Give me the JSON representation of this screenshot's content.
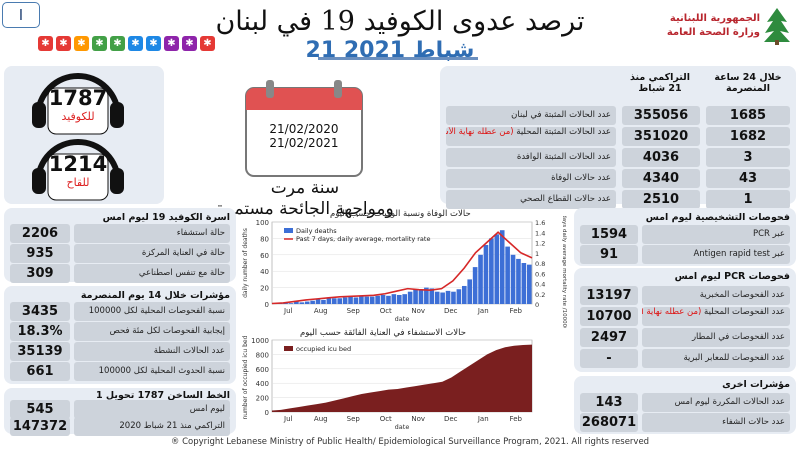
{
  "header": {
    "page_number": "I",
    "title": "ترصد عدوى الكوفيد 19 في لبنان",
    "date": "21 شباط 2021",
    "ministry_line1": "الجمهورية اللبنانية",
    "ministry_line2": "وزارة الصحة العامة",
    "icon_colors": [
      "#e53935",
      "#e53935",
      "#ff9800",
      "#43a047",
      "#43a047",
      "#1e88e5",
      "#1e88e5",
      "#8e24aa",
      "#8e24aa",
      "#e53935"
    ]
  },
  "hotlines": {
    "covid_number": "1787",
    "covid_label": "للكوفيد",
    "vaccine_number": "1214",
    "vaccine_label": "للقاح"
  },
  "calendar": {
    "date1": "21/02/2020",
    "date2": "21/02/2021",
    "line1": "سنة مرت",
    "line2": "ومواجهة الجائحة مستمرة"
  },
  "main_stats": {
    "col_24h": "خلال 24 ساعة المنصرمة",
    "col_cumulative": "التراكمي منذ 21 شباط",
    "rows": [
      {
        "v24": "1685",
        "cum": "355056",
        "label": "عدد الحالات المثبتة في لبنان",
        "note": ""
      },
      {
        "v24": "1682",
        "cum": "351020",
        "label": "عدد الحالات المثبتة المحلية",
        "note": "(من عطله نهاية الأسبوع)"
      },
      {
        "v24": "3",
        "cum": "4036",
        "label": "عدد الحالات المثبتة الوافدة",
        "note": ""
      },
      {
        "v24": "43",
        "cum": "4340",
        "label": "عدد حالات الوفاة",
        "note": ""
      },
      {
        "v24": "1",
        "cum": "2510",
        "label": "عدد حالات القطاع الصحي",
        "note": ""
      }
    ]
  },
  "beds": {
    "title": "اسرة الكوفيد 19 ليوم امس",
    "rows": [
      {
        "value": "2206",
        "label": "حالة استشفاء"
      },
      {
        "value": "935",
        "label": "حالة في العناية المركزة"
      },
      {
        "value": "309",
        "label": "حالة مع تنفس اصطناعي"
      }
    ]
  },
  "indicators14": {
    "title": "مؤشرات خلال 14 يوم المنصرمة",
    "rows": [
      {
        "value": "3435",
        "label": "نسبة الفحوصات المحلية لكل 100000"
      },
      {
        "value": "18.3%",
        "label": "إيجابية الفحوصات لكل مئة فحص"
      },
      {
        "value": "35139",
        "label": "عدد الحالات النشطة"
      },
      {
        "value": "661",
        "label": "نسبة الحدوث المحلية لكل 100000"
      }
    ]
  },
  "hotline_transfers": {
    "title": "الخط الساخن 1787 تحويل 1",
    "rows": [
      {
        "value": "545",
        "label": "ليوم امس"
      },
      {
        "value": "147372",
        "label": "التراكمي منذ 21 شباط 2020"
      }
    ]
  },
  "diagnostic_tests": {
    "title": "فحوصات التشخيصية ليوم امس",
    "rows": [
      {
        "value": "1594",
        "label": "عبر PCR"
      },
      {
        "value": "91",
        "label": "عبر Antigen rapid test"
      }
    ]
  },
  "pcr_tests": {
    "title": "فحوصات PCR ليوم امس",
    "rows": [
      {
        "value": "13197",
        "label": "عدد الفحوصات المخبرية",
        "note": ""
      },
      {
        "value": "10700",
        "label": "عدد الفحوصات المحلية",
        "note": "(من عطله نهاية الأسبوع)"
      },
      {
        "value": "2497",
        "label": "عدد الفحوصات في المطار",
        "note": ""
      },
      {
        "value": "-",
        "label": "عدد الفحوصات للمعابر البرية",
        "note": ""
      }
    ]
  },
  "other_indicators": {
    "title": "مؤشرات اخرى",
    "rows": [
      {
        "value": "143",
        "label": "عدد الحالات المكررة ليوم امس"
      },
      {
        "value": "268071",
        "label": "عدد حالات الشفاء"
      }
    ]
  },
  "chart_data": [
    {
      "type": "bar",
      "title": "حالات الوفاة ونسبة الوفيات حسب اليوم",
      "ylabel": "daily number of deaths",
      "y2label": "past 7 days daily average mortality rate /100000",
      "xlabel": "date",
      "legend": [
        "Daily deaths",
        "Past 7 days, daily average, mortality rate"
      ],
      "x_ticks": [
        "Jul",
        "Aug",
        "Sep",
        "Oct",
        "Nov",
        "Dec",
        "Jan",
        "Feb"
      ],
      "y_ticks": [
        0,
        20,
        40,
        60,
        80,
        100
      ],
      "y2_ticks": [
        0,
        0.2,
        0.4,
        0.6,
        0.8,
        1.0,
        1.2,
        1.4,
        1.6
      ],
      "ylim": [
        0,
        100
      ],
      "y2lim": [
        0,
        1.6
      ],
      "months_series": [
        {
          "month": "Jul",
          "deaths": [
            1,
            1,
            2,
            1,
            3,
            2
          ]
        },
        {
          "month": "Aug",
          "deaths": [
            3,
            4,
            6,
            5,
            8,
            7
          ]
        },
        {
          "month": "Sep",
          "deaths": [
            7,
            8,
            9,
            8,
            10,
            9
          ]
        },
        {
          "month": "Oct",
          "deaths": [
            9,
            10,
            11,
            10,
            12,
            11
          ]
        },
        {
          "month": "Nov",
          "deaths": [
            12,
            15,
            18,
            17,
            20,
            19
          ]
        },
        {
          "month": "Dec",
          "deaths": [
            15,
            14,
            16,
            15,
            18,
            22
          ]
        },
        {
          "month": "Jan",
          "deaths": [
            30,
            45,
            60,
            72,
            80,
            85
          ]
        },
        {
          "month": "Feb",
          "deaths": [
            90,
            70,
            60,
            55,
            50,
            48
          ]
        }
      ],
      "rate_series": [
        0.01,
        0.02,
        0.05,
        0.08,
        0.1,
        0.12,
        0.14,
        0.15,
        0.16,
        0.17,
        0.2,
        0.25,
        0.3,
        0.28,
        0.27,
        0.3,
        0.45,
        0.7,
        1.0,
        1.2,
        1.4,
        1.2,
        1.0,
        0.9
      ]
    },
    {
      "type": "area",
      "title": "حالات الاستشفاء في العناية الفائقة حسب اليوم",
      "ylabel": "number of occupied icu beds",
      "xlabel": "date",
      "legend": [
        "occupied icu bed"
      ],
      "x_ticks": [
        "Jul",
        "Aug",
        "Sep",
        "Oct",
        "Nov",
        "Dec",
        "Jan",
        "Feb"
      ],
      "y_ticks": [
        0,
        200,
        400,
        600,
        800,
        1000
      ],
      "ylim": [
        0,
        1000
      ],
      "values": [
        20,
        30,
        50,
        70,
        90,
        110,
        130,
        160,
        190,
        220,
        250,
        270,
        290,
        310,
        320,
        340,
        360,
        380,
        400,
        420,
        480,
        560,
        640,
        720,
        800,
        860,
        900,
        920,
        930,
        935
      ]
    }
  ],
  "footer": "® Copyright Lebanese Ministry of Public Health/ Epidemiological Surveillance Program, 2021. All rights reserved"
}
